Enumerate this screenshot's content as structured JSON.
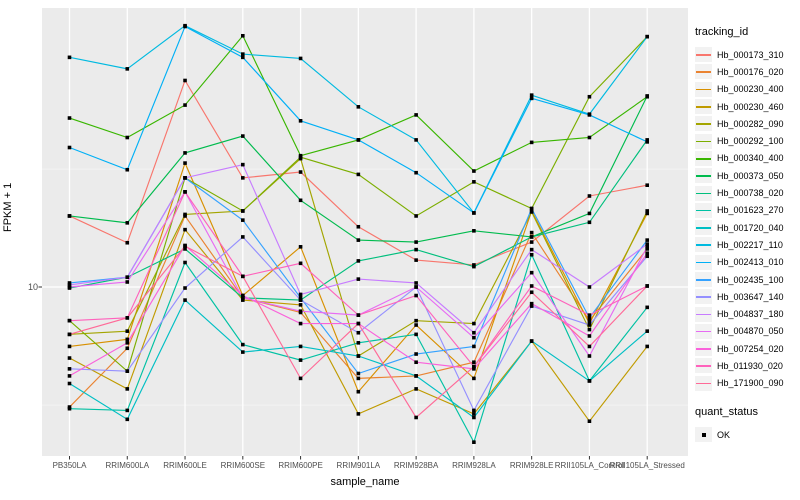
{
  "chart_data": {
    "type": "line",
    "title": "",
    "xlabel": "sample_name",
    "ylabel": "FPKM + 1",
    "y_scale": "log10",
    "y_breaks": [
      10
    ],
    "y_minor_breaks": [
      3.16,
      31.6
    ],
    "ylim": [
      1.9,
      160
    ],
    "grid": "major-white-on-grey",
    "legend_position": "right",
    "marker": {
      "shape": "square",
      "color": "#000000",
      "meaning": "quant_status OK"
    },
    "categories": [
      "PB350LA",
      "RRIM600LA",
      "RRIM600LE",
      "RRIM600SE",
      "RRIM600PE",
      "RRIM901LA",
      "RRIM928BA",
      "RRIM928LA",
      "RRIM928LE",
      "RRII105LA_Control",
      "RRII105LA_Stressed"
    ],
    "series": [
      {
        "name": "Hb_000173_310",
        "color": "#F8766D",
        "values": [
          20,
          15.4,
          75,
          29,
          30.7,
          18,
          13,
          12.4,
          15.5,
          24.3,
          27
        ]
      },
      {
        "name": "Hb_000176_020",
        "color": "#EA8331",
        "values": [
          3.1,
          5.5,
          20,
          9.0,
          7.8,
          4.1,
          4.2,
          4.8,
          17,
          7.2,
          14.5
        ]
      },
      {
        "name": "Hb_000230_400",
        "color": "#D89000",
        "values": [
          5.6,
          6.0,
          33.5,
          9.2,
          14.8,
          3.6,
          6.9,
          4.1,
          21,
          7.0,
          20.5
        ]
      },
      {
        "name": "Hb_000230_460",
        "color": "#C09B00",
        "values": [
          5.0,
          3.7,
          17.5,
          8.8,
          8.4,
          2.9,
          3.7,
          2.9,
          5.9,
          2.7,
          5.6
        ]
      },
      {
        "name": "Hb_000282_090",
        "color": "#A3A500",
        "values": [
          6.3,
          6.5,
          20.3,
          21,
          35,
          5.1,
          7.2,
          7.0,
          20.8,
          6.6,
          21
        ]
      },
      {
        "name": "Hb_000292_100",
        "color": "#7CAE00",
        "values": [
          7.2,
          4.4,
          29,
          21,
          35.5,
          30,
          20,
          27.9,
          21.5,
          64,
          115
        ]
      },
      {
        "name": "Hb_000340_400",
        "color": "#39B600",
        "values": [
          52,
          43,
          59,
          116,
          36,
          42,
          53.6,
          31,
          41,
          43,
          64
        ]
      },
      {
        "name": "Hb_000373_050",
        "color": "#00BB4E",
        "values": [
          20,
          18.7,
          37,
          43.6,
          23.3,
          15.8,
          15.5,
          17.3,
          16.3,
          20.5,
          64.5
        ]
      },
      {
        "name": "Hb_000738_020",
        "color": "#00BF7D",
        "values": [
          9.9,
          11,
          14.5,
          9.0,
          8.8,
          12.9,
          14.4,
          12.2,
          16.3,
          18.8,
          42
        ]
      },
      {
        "name": "Hb_001623_270",
        "color": "#00C1A3",
        "values": [
          3.05,
          3.0,
          12.7,
          5.7,
          4.9,
          5.8,
          6.3,
          2.2,
          13.7,
          4.0,
          8.2
        ]
      },
      {
        "name": "Hb_001720_040",
        "color": "#00BFC4",
        "values": [
          3.9,
          2.75,
          8.8,
          5.3,
          5.6,
          5.1,
          4.2,
          2.8,
          5.9,
          4.0,
          6.5
        ]
      },
      {
        "name": "Hb_002217_110",
        "color": "#00BAE0",
        "values": [
          94,
          84,
          128,
          97,
          93,
          58,
          42,
          20.6,
          65,
          54,
          115
        ]
      },
      {
        "name": "Hb_002413_010",
        "color": "#00B0F6",
        "values": [
          39,
          31.4,
          127,
          94,
          50.6,
          42,
          30.5,
          20.6,
          63,
          53.6,
          41.2
        ]
      },
      {
        "name": "Hb_002435_100",
        "color": "#35A2FF",
        "values": [
          10.4,
          11,
          29,
          19.2,
          9.0,
          4.3,
          5.2,
          5.6,
          21.5,
          7.4,
          15.8
        ]
      },
      {
        "name": "Hb_003647_140",
        "color": "#9590FF",
        "values": [
          4.5,
          4.4,
          9.9,
          16.3,
          8.8,
          6.4,
          10.0,
          3.0,
          8.3,
          6.9,
          13.5
        ]
      },
      {
        "name": "Hb_004837_180",
        "color": "#C77CFF",
        "values": [
          10.2,
          11,
          29,
          33,
          9.3,
          10.8,
          10.4,
          6.4,
          14.4,
          10,
          15.2
        ]
      },
      {
        "name": "Hb_004870_050",
        "color": "#E76BF3",
        "values": [
          10.0,
          10.5,
          25.3,
          9.0,
          7.9,
          7.6,
          10.0,
          6.1,
          11.5,
          5.1,
          14.8
        ]
      },
      {
        "name": "Hb_007254_020",
        "color": "#FA62DB",
        "values": [
          4.2,
          5.8,
          15,
          9.2,
          7.0,
          7.0,
          4.8,
          4.5,
          8.5,
          6.2,
          13.9
        ]
      },
      {
        "name": "Hb_011930_020",
        "color": "#FF62BC",
        "values": [
          7.2,
          7.4,
          25.3,
          11.1,
          12.6,
          7.6,
          9.2,
          4.6,
          10.1,
          7.6,
          10.1
        ]
      },
      {
        "name": "Hb_171900_090",
        "color": "#FF6A98",
        "values": [
          6.3,
          7.4,
          14.9,
          11.1,
          4.1,
          7.0,
          2.8,
          4.6,
          9.5,
          5.6,
          10.1
        ]
      }
    ]
  },
  "axes": {
    "y_title": "FPKM + 1",
    "x_title": "sample_name",
    "y_tick_label": "10"
  },
  "legend": {
    "tracking_title": "tracking_id",
    "quant_title": "quant_status",
    "quant_ok_label": "OK"
  },
  "colors": {
    "panel_background": "#EBEBEB",
    "grid_major": "#FFFFFF",
    "grid_minor": "#F3F3F3",
    "tick_mark": "#333333",
    "axis_text": "#4D4D4D",
    "point": "#000000",
    "page_background": "#FFFFFF"
  }
}
